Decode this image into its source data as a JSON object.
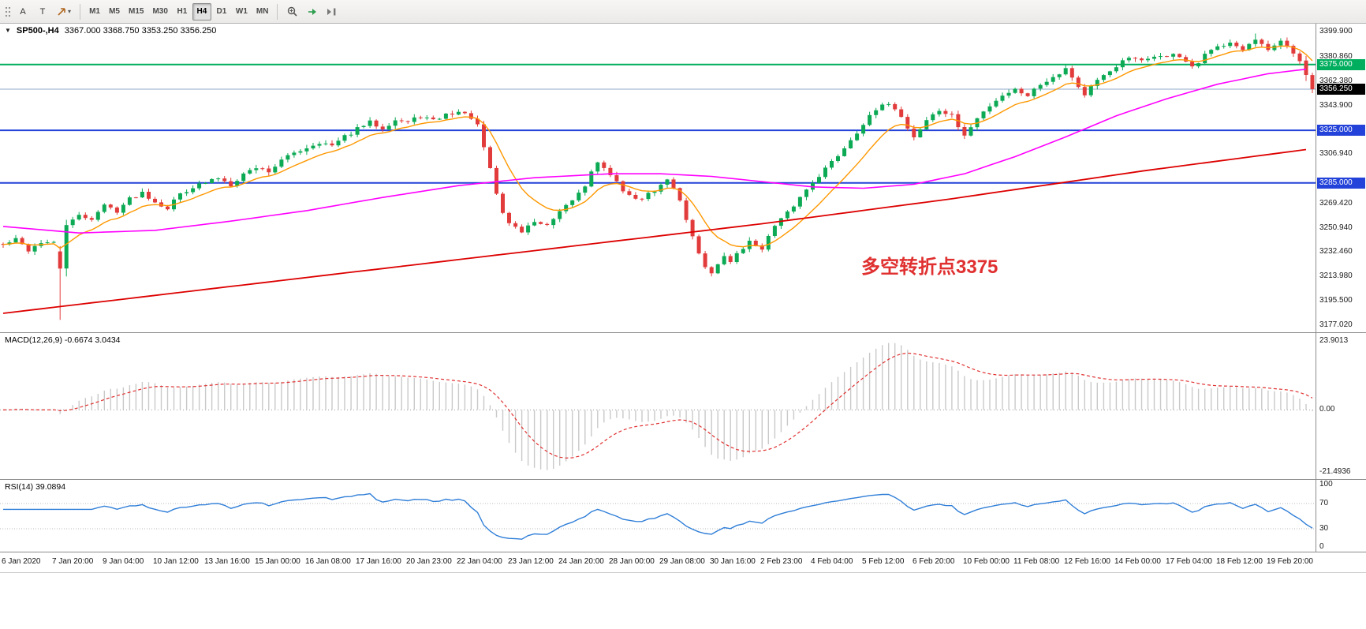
{
  "toolbar": {
    "tools": {
      "a": "A",
      "t": "T"
    },
    "timeframes": [
      "M1",
      "M5",
      "M15",
      "M30",
      "H1",
      "H4",
      "D1",
      "W1",
      "MN"
    ],
    "active_timeframe": "H4"
  },
  "chart_data": {
    "type": "candlestick",
    "title": {
      "symbol": "SP500-,H4",
      "ohlc": "3367.000 3368.750 3353.250 3356.250",
      "collapse_icon": "▼"
    },
    "annotation": {
      "text": "多空转折点3375",
      "color": "#e03030"
    },
    "scale": {
      "min": 3171,
      "max": 3406
    },
    "bars": 208,
    "seed": 42,
    "colors": {
      "up": "#0caa54",
      "down": "#e23b3b",
      "bid_line": "#8fa8c8"
    },
    "hlines": [
      {
        "price": 3375.0,
        "color": "#00ae5d",
        "width": 2
      },
      {
        "price": 3325.0,
        "color": "#2342d9",
        "width": 2
      },
      {
        "price": 3285.0,
        "color": "#2342d9",
        "width": 2
      }
    ],
    "bid_line": {
      "price": 3356.25
    },
    "price_axis": {
      "ticks": [
        "3399.900",
        "3380.860",
        "3362.380",
        "3343.900",
        "3306.940",
        "3269.420",
        "3250.940",
        "3232.460",
        "3213.980",
        "3195.500",
        "3177.020"
      ],
      "badges": [
        {
          "value": "3375.000",
          "price": 3375.0,
          "color": "#00ae5d"
        },
        {
          "value": "3356.250",
          "price": 3356.25,
          "color": "#000000"
        },
        {
          "value": "3325.000",
          "price": 3325.0,
          "color": "#2342d9"
        },
        {
          "value": "3285.000",
          "price": 3285.0,
          "color": "#2342d9"
        }
      ]
    },
    "close_anchors": [
      [
        0,
        3238
      ],
      [
        2,
        3242
      ],
      [
        4,
        3234
      ],
      [
        6,
        3240
      ],
      [
        8,
        3239
      ],
      [
        9,
        3220
      ],
      [
        10,
        3252
      ],
      [
        12,
        3260
      ],
      [
        14,
        3258
      ],
      [
        16,
        3268
      ],
      [
        18,
        3264
      ],
      [
        20,
        3273
      ],
      [
        22,
        3278
      ],
      [
        24,
        3271
      ],
      [
        26,
        3266
      ],
      [
        28,
        3277
      ],
      [
        30,
        3282
      ],
      [
        32,
        3285
      ],
      [
        34,
        3289
      ],
      [
        36,
        3284
      ],
      [
        38,
        3292
      ],
      [
        40,
        3297
      ],
      [
        42,
        3294
      ],
      [
        44,
        3302
      ],
      [
        46,
        3308
      ],
      [
        48,
        3312
      ],
      [
        50,
        3316
      ],
      [
        52,
        3313
      ],
      [
        54,
        3320
      ],
      [
        56,
        3326
      ],
      [
        58,
        3331
      ],
      [
        60,
        3327
      ],
      [
        62,
        3333
      ],
      [
        64,
        3331
      ],
      [
        66,
        3336
      ],
      [
        68,
        3332
      ],
      [
        70,
        3337
      ],
      [
        72,
        3339
      ],
      [
        74,
        3335
      ],
      [
        75,
        3328
      ],
      [
        76,
        3312
      ],
      [
        77,
        3295
      ],
      [
        78,
        3277
      ],
      [
        79,
        3262
      ],
      [
        80,
        3255
      ],
      [
        82,
        3248
      ],
      [
        84,
        3256
      ],
      [
        86,
        3252
      ],
      [
        88,
        3262
      ],
      [
        90,
        3272
      ],
      [
        92,
        3283
      ],
      [
        93,
        3295
      ],
      [
        94,
        3300
      ],
      [
        95,
        3297
      ],
      [
        96,
        3290
      ],
      [
        98,
        3280
      ],
      [
        100,
        3272
      ],
      [
        102,
        3276
      ],
      [
        104,
        3283
      ],
      [
        105,
        3287
      ],
      [
        106,
        3282
      ],
      [
        107,
        3272
      ],
      [
        108,
        3258
      ],
      [
        109,
        3244
      ],
      [
        110,
        3232
      ],
      [
        111,
        3222
      ],
      [
        112,
        3216
      ],
      [
        113,
        3222
      ],
      [
        114,
        3230
      ],
      [
        115,
        3224
      ],
      [
        116,
        3232
      ],
      [
        118,
        3240
      ],
      [
        120,
        3236
      ],
      [
        121,
        3244
      ],
      [
        122,
        3252
      ],
      [
        124,
        3262
      ],
      [
        126,
        3274
      ],
      [
        128,
        3286
      ],
      [
        130,
        3296
      ],
      [
        132,
        3306
      ],
      [
        134,
        3318
      ],
      [
        136,
        3330
      ],
      [
        138,
        3340
      ],
      [
        140,
        3346
      ],
      [
        141,
        3342
      ],
      [
        142,
        3335
      ],
      [
        143,
        3327
      ],
      [
        144,
        3320
      ],
      [
        145,
        3326
      ],
      [
        146,
        3333
      ],
      [
        148,
        3340
      ],
      [
        150,
        3336
      ],
      [
        151,
        3328
      ],
      [
        152,
        3321
      ],
      [
        153,
        3327
      ],
      [
        154,
        3334
      ],
      [
        156,
        3344
      ],
      [
        158,
        3352
      ],
      [
        160,
        3356
      ],
      [
        162,
        3352
      ],
      [
        164,
        3360
      ],
      [
        166,
        3366
      ],
      [
        168,
        3372
      ],
      [
        169,
        3366
      ],
      [
        170,
        3358
      ],
      [
        171,
        3352
      ],
      [
        172,
        3358
      ],
      [
        174,
        3366
      ],
      [
        176,
        3374
      ],
      [
        178,
        3380
      ],
      [
        180,
        3377
      ],
      [
        182,
        3382
      ],
      [
        184,
        3380
      ],
      [
        185,
        3384
      ],
      [
        186,
        3381
      ],
      [
        187,
        3377
      ],
      [
        188,
        3372
      ],
      [
        189,
        3376
      ],
      [
        190,
        3382
      ],
      [
        192,
        3388
      ],
      [
        194,
        3393
      ],
      [
        195,
        3390
      ],
      [
        196,
        3386
      ],
      [
        197,
        3390
      ],
      [
        198,
        3393
      ],
      [
        199,
        3389
      ],
      [
        200,
        3385
      ],
      [
        201,
        3389
      ],
      [
        202,
        3392
      ],
      [
        203,
        3388
      ],
      [
        204,
        3383
      ],
      [
        205,
        3378
      ],
      [
        206,
        3367
      ],
      [
        207,
        3356.25
      ]
    ],
    "overrides": [
      {
        "bar": 9,
        "open": 3233,
        "high": 3237,
        "low": 3181,
        "close": 3220
      },
      {
        "bar": 10,
        "open": 3220,
        "high": 3257,
        "low": 3214,
        "close": 3253
      },
      {
        "bar": 198,
        "high": 3398.5
      },
      {
        "bar": 206,
        "open": 3378,
        "high": 3381.5,
        "low": 3362.5,
        "close": 3367
      },
      {
        "bar": 207,
        "open": 3367,
        "high": 3368.75,
        "low": 3353.25,
        "close": 3356.25
      }
    ],
    "ma": {
      "orange": {
        "period": 10,
        "color": "#ff9800"
      },
      "magenta": {
        "color": "#ff00ff",
        "anchors": [
          [
            0,
            3252
          ],
          [
            12,
            3247
          ],
          [
            24,
            3249
          ],
          [
            36,
            3256
          ],
          [
            48,
            3264
          ],
          [
            60,
            3274
          ],
          [
            72,
            3283
          ],
          [
            84,
            3289
          ],
          [
            96,
            3292
          ],
          [
            104,
            3292
          ],
          [
            112,
            3290
          ],
          [
            120,
            3286
          ],
          [
            128,
            3282
          ],
          [
            136,
            3281
          ],
          [
            144,
            3284
          ],
          [
            152,
            3292
          ],
          [
            160,
            3305
          ],
          [
            168,
            3320
          ],
          [
            176,
            3336
          ],
          [
            184,
            3349
          ],
          [
            192,
            3360
          ],
          [
            200,
            3368
          ],
          [
            207,
            3372
          ]
        ]
      },
      "red": {
        "color": "#dd0000",
        "anchors": [
          [
            0,
            3186
          ],
          [
            30,
            3203
          ],
          [
            60,
            3220
          ],
          [
            90,
            3237
          ],
          [
            120,
            3254
          ],
          [
            150,
            3273
          ],
          [
            180,
            3294
          ],
          [
            207,
            3311
          ]
        ]
      }
    },
    "time_axis": {
      "labels": [
        "6 Jan 2020",
        "7 Jan 20:00",
        "9 Jan 04:00",
        "10 Jan 12:00",
        "13 Jan 16:00",
        "15 Jan 00:00",
        "16 Jan 08:00",
        "17 Jan 16:00",
        "20 Jan 23:00",
        "22 Jan 04:00",
        "23 Jan 12:00",
        "24 Jan 20:00",
        "28 Jan 00:00",
        "29 Jan 08:00",
        "30 Jan 16:00",
        "2 Feb 23:00",
        "4 Feb 04:00",
        "5 Feb 12:00",
        "6 Feb 20:00",
        "10 Feb 00:00",
        "11 Feb 08:00",
        "12 Feb 16:00",
        "14 Feb 00:00",
        "17 Feb 04:00",
        "18 Feb 12:00",
        "19 Feb 20:00"
      ]
    }
  },
  "macd": {
    "label": "MACD(12,26,9) -0.6674 3.0434",
    "params": {
      "fast": 12,
      "slow": 26,
      "signal": 9
    },
    "axis": {
      "top": "23.9013",
      "zero": "0.00",
      "bottom": "-21.4936"
    },
    "colors": {
      "hist": "#c9c9c9",
      "signal": "#e03030",
      "zero_line": "#999999"
    }
  },
  "rsi": {
    "label": "RSI(14) 39.0894",
    "period": 14,
    "levels": [
      70,
      30
    ],
    "axis": [
      "100",
      "70",
      "30",
      "0"
    ],
    "color": "#2f7ed8",
    "level_line_color": "#b9b9b9"
  }
}
